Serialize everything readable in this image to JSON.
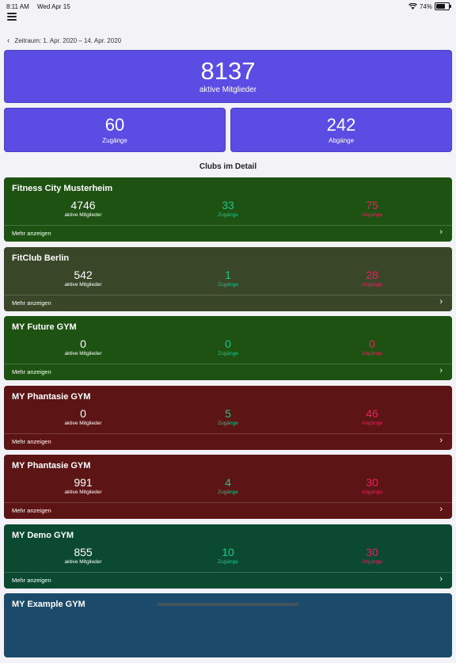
{
  "status": {
    "time": "8:11 AM",
    "date": "Wed Apr 15",
    "battery": "74%",
    "battery_level": 0.74
  },
  "period": "Zeitraum: 1. Apr. 2020 – 14. Apr. 2020",
  "summary": {
    "active": {
      "value": "8137",
      "label": "aktive Mitglieder"
    },
    "joins": {
      "value": "60",
      "label": "Zugänge"
    },
    "leaves": {
      "value": "242",
      "label": "Abgänge"
    }
  },
  "section_title": "Clubs im Detail",
  "colors": {
    "accent": "#5b4ce4",
    "joins": "#1fc48b",
    "leaves": "#e8205f"
  },
  "clubs": [
    {
      "name": "Fitness City Musterheim",
      "active": "4746",
      "active_label": "aktive Mitglieder",
      "joins": "33",
      "joins_label": "Zugänge",
      "leaves": "75",
      "leaves_label": "Abgänge",
      "more": "Mehr anzeigen",
      "color": "#1d5212"
    },
    {
      "name": "FitClub Berlin",
      "active": "542",
      "active_label": "aktive Mitglieder",
      "joins": "1",
      "joins_label": "Zugänge",
      "leaves": "28",
      "leaves_label": "Abgänge",
      "more": "Mehr anzeigen",
      "color": "#394628"
    },
    {
      "name": "MY Future GYM",
      "active": "0",
      "active_label": "aktive Mitglieder",
      "joins": "0",
      "joins_label": "Zugänge",
      "leaves": "0",
      "leaves_label": "Abgänge",
      "more": "Mehr anzeigen",
      "color": "#1d5212"
    },
    {
      "name": "MY Phantasie GYM",
      "active": "0",
      "active_label": "aktive Mitglieder",
      "joins": "5",
      "joins_label": "Zugänge",
      "leaves": "46",
      "leaves_label": "Abgänge",
      "more": "Mehr anzeigen",
      "color": "#5c1514"
    },
    {
      "name": "MY Phantasie GYM",
      "active": "991",
      "active_label": "aktive Mitglieder",
      "joins": "4",
      "joins_label": "Zugänge",
      "leaves": "30",
      "leaves_label": "Abgänge",
      "more": "Mehr anzeigen",
      "color": "#5c1514"
    },
    {
      "name": "MY Demo GYM",
      "active": "855",
      "active_label": "aktive Mitglieder",
      "joins": "10",
      "joins_label": "Zugänge",
      "leaves": "30",
      "leaves_label": "Abgänge",
      "more": "Mehr anzeigen",
      "color": "#0b4a30"
    },
    {
      "name": "MY Example GYM",
      "color": "#1c4a6b"
    }
  ]
}
